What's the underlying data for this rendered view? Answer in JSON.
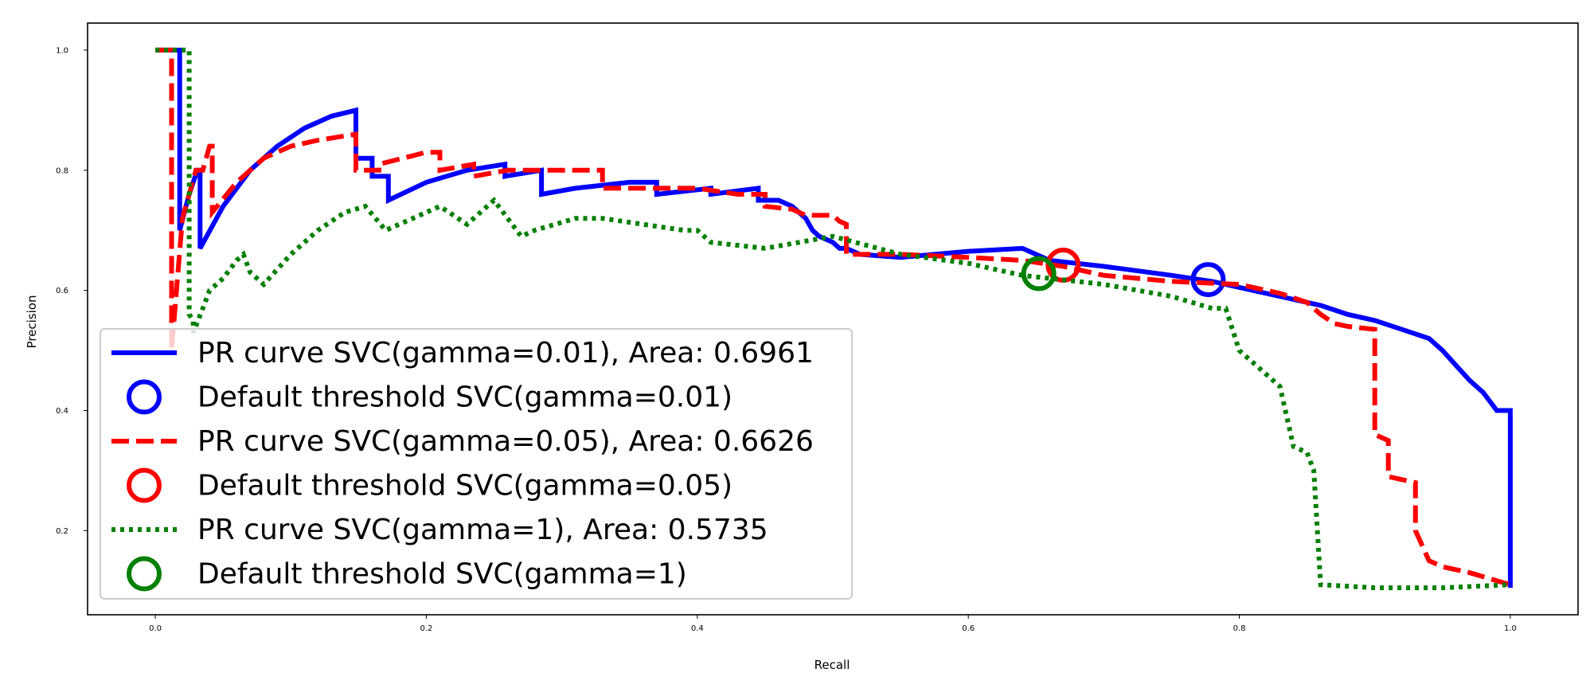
{
  "chart_data": {
    "type": "line",
    "title": "",
    "xlabel": "Recall",
    "ylabel": "Precision",
    "xlim": [
      -0.05,
      1.05
    ],
    "ylim": [
      0.06,
      1.045
    ],
    "xticks": [
      "0.0",
      "0.2",
      "0.4",
      "0.6",
      "0.8",
      "1.0"
    ],
    "yticks": [
      "0.2",
      "0.4",
      "0.6",
      "0.8",
      "1.0"
    ],
    "grid": false,
    "legend_position": "lower-left",
    "series": [
      {
        "name": "PR curve SVC(gamma=0.01), Area: 0.6961",
        "kind": "curve",
        "color": "#0000ff",
        "style": "solid",
        "x": [
          0.0,
          0.018,
          0.018,
          0.025,
          0.031,
          0.033,
          0.033,
          0.05,
          0.07,
          0.09,
          0.11,
          0.13,
          0.148,
          0.148,
          0.16,
          0.16,
          0.172,
          0.172,
          0.2,
          0.23,
          0.258,
          0.258,
          0.285,
          0.285,
          0.31,
          0.35,
          0.37,
          0.37,
          0.41,
          0.41,
          0.445,
          0.445,
          0.46,
          0.47,
          0.48,
          0.485,
          0.49,
          0.5,
          0.505,
          0.51,
          0.52,
          0.55,
          0.6,
          0.64,
          0.66,
          0.7,
          0.75,
          0.78,
          0.8,
          0.82,
          0.84,
          0.86,
          0.88,
          0.9,
          0.92,
          0.94,
          0.95,
          0.96,
          0.97,
          0.98,
          0.99,
          1.0,
          1.0
        ],
        "y": [
          1.0,
          1.0,
          0.7,
          0.76,
          0.8,
          0.8,
          0.67,
          0.74,
          0.8,
          0.84,
          0.87,
          0.89,
          0.9,
          0.82,
          0.82,
          0.79,
          0.79,
          0.75,
          0.78,
          0.8,
          0.81,
          0.79,
          0.8,
          0.76,
          0.77,
          0.78,
          0.78,
          0.76,
          0.77,
          0.76,
          0.77,
          0.75,
          0.75,
          0.74,
          0.72,
          0.7,
          0.69,
          0.68,
          0.67,
          0.67,
          0.66,
          0.655,
          0.665,
          0.67,
          0.65,
          0.64,
          0.625,
          0.615,
          0.605,
          0.595,
          0.585,
          0.575,
          0.56,
          0.55,
          0.535,
          0.52,
          0.5,
          0.475,
          0.45,
          0.43,
          0.4,
          0.4,
          0.105
        ]
      },
      {
        "name": "Default threshold SVC(gamma=0.01)",
        "kind": "marker",
        "color": "#0000ff",
        "x": [
          0.777
        ],
        "y": [
          0.618
        ]
      },
      {
        "name": "PR curve SVC(gamma=0.05), Area: 0.6626",
        "kind": "curve",
        "color": "#ff0000",
        "style": "dashed",
        "x": [
          0.0,
          0.012,
          0.012,
          0.02,
          0.03,
          0.035,
          0.04,
          0.042,
          0.042,
          0.06,
          0.08,
          0.1,
          0.12,
          0.148,
          0.148,
          0.165,
          0.165,
          0.2,
          0.21,
          0.21,
          0.235,
          0.235,
          0.26,
          0.29,
          0.33,
          0.33,
          0.36,
          0.4,
          0.43,
          0.45,
          0.45,
          0.47,
          0.48,
          0.49,
          0.5,
          0.505,
          0.51,
          0.51,
          0.55,
          0.6,
          0.64,
          0.67,
          0.7,
          0.75,
          0.8,
          0.83,
          0.85,
          0.86,
          0.87,
          0.88,
          0.9,
          0.9,
          0.91,
          0.91,
          0.93,
          0.93,
          0.94,
          0.95,
          0.97,
          1.0
        ],
        "y": [
          1.0,
          1.0,
          0.5,
          0.72,
          0.8,
          0.8,
          0.84,
          0.84,
          0.73,
          0.78,
          0.82,
          0.84,
          0.85,
          0.86,
          0.8,
          0.8,
          0.81,
          0.83,
          0.83,
          0.8,
          0.81,
          0.79,
          0.8,
          0.8,
          0.8,
          0.77,
          0.77,
          0.77,
          0.76,
          0.76,
          0.74,
          0.735,
          0.725,
          0.725,
          0.725,
          0.715,
          0.71,
          0.66,
          0.66,
          0.655,
          0.65,
          0.64,
          0.625,
          0.615,
          0.61,
          0.595,
          0.58,
          0.56,
          0.545,
          0.54,
          0.535,
          0.36,
          0.35,
          0.29,
          0.28,
          0.2,
          0.15,
          0.14,
          0.13,
          0.11
        ]
      },
      {
        "name": "Default threshold SVC(gamma=0.05)",
        "kind": "marker",
        "color": "#ff0000",
        "x": [
          0.67
        ],
        "y": [
          0.642
        ]
      },
      {
        "name": "PR curve SVC(gamma=1), Area: 0.5735",
        "kind": "curve",
        "color": "#008000",
        "style": "dotted",
        "x": [
          0.0,
          0.025,
          0.025,
          0.028,
          0.028,
          0.035,
          0.04,
          0.05,
          0.06,
          0.065,
          0.07,
          0.08,
          0.1,
          0.12,
          0.14,
          0.155,
          0.17,
          0.19,
          0.21,
          0.23,
          0.25,
          0.27,
          0.28,
          0.31,
          0.33,
          0.36,
          0.39,
          0.4,
          0.41,
          0.45,
          0.5,
          0.55,
          0.6,
          0.62,
          0.64,
          0.66,
          0.7,
          0.75,
          0.78,
          0.79,
          0.8,
          0.82,
          0.83,
          0.84,
          0.85,
          0.855,
          0.86,
          0.9,
          0.95,
          1.0
        ],
        "y": [
          1.0,
          1.0,
          0.56,
          0.55,
          0.53,
          0.57,
          0.6,
          0.62,
          0.65,
          0.66,
          0.63,
          0.61,
          0.66,
          0.7,
          0.73,
          0.74,
          0.7,
          0.72,
          0.74,
          0.71,
          0.75,
          0.69,
          0.7,
          0.72,
          0.72,
          0.71,
          0.7,
          0.7,
          0.68,
          0.67,
          0.69,
          0.66,
          0.645,
          0.635,
          0.625,
          0.62,
          0.61,
          0.59,
          0.57,
          0.57,
          0.5,
          0.46,
          0.44,
          0.34,
          0.33,
          0.3,
          0.11,
          0.105,
          0.105,
          0.11
        ]
      },
      {
        "name": "Default threshold SVC(gamma=1)",
        "kind": "marker",
        "color": "#008000",
        "x": [
          0.652
        ],
        "y": [
          0.628
        ]
      }
    ],
    "legend": [
      {
        "label": "PR curve SVC(gamma=0.01), Area: 0.6961",
        "kind": "line",
        "color": "#0000ff",
        "style": "solid"
      },
      {
        "label": "Default threshold SVC(gamma=0.01)",
        "kind": "marker",
        "color": "#0000ff"
      },
      {
        "label": "PR curve SVC(gamma=0.05), Area: 0.6626",
        "kind": "line",
        "color": "#ff0000",
        "style": "dashed"
      },
      {
        "label": "Default threshold SVC(gamma=0.05)",
        "kind": "marker",
        "color": "#ff0000"
      },
      {
        "label": "PR curve SVC(gamma=1), Area: 0.5735",
        "kind": "line",
        "color": "#008000",
        "style": "dotted"
      },
      {
        "label": "Default threshold SVC(gamma=1)",
        "kind": "marker",
        "color": "#008000"
      }
    ]
  }
}
